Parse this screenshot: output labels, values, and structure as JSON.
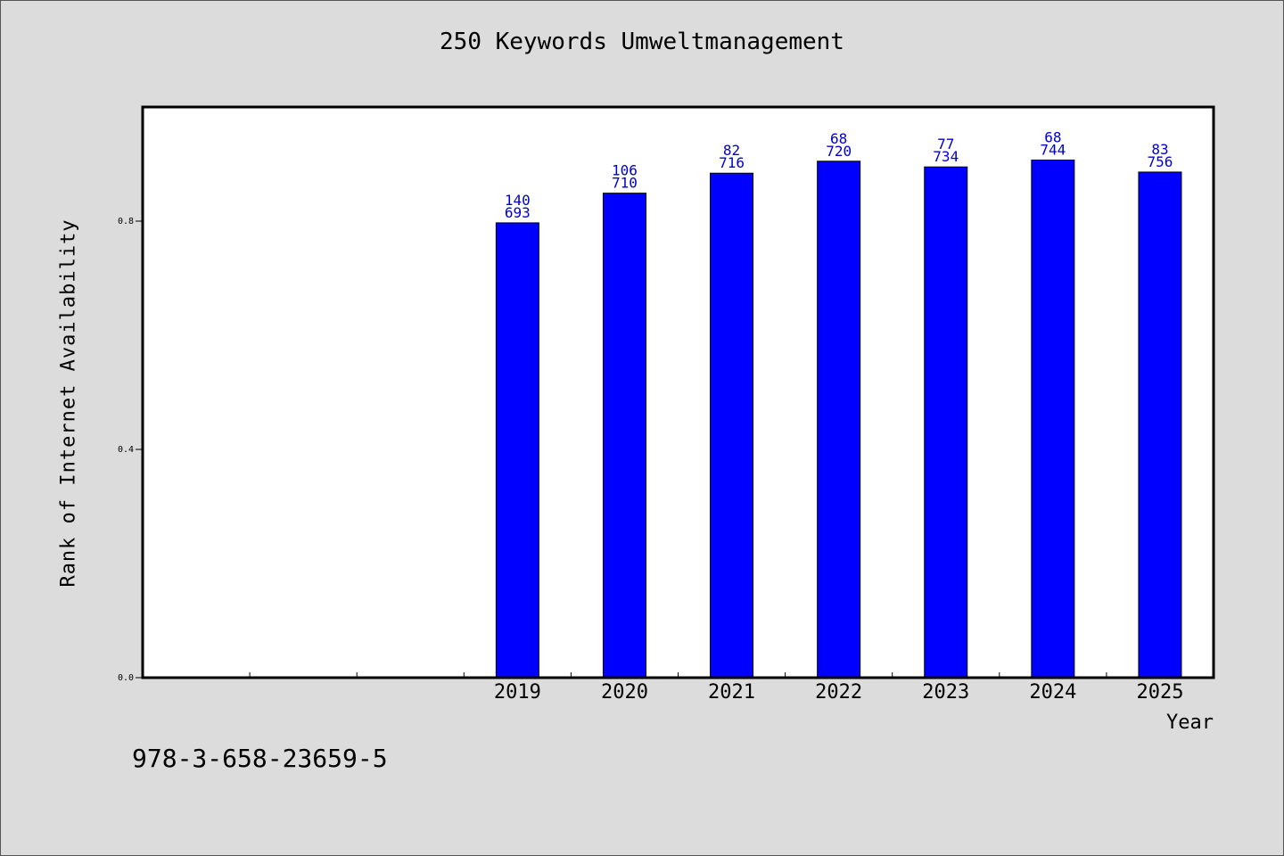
{
  "chart_data": {
    "type": "bar",
    "title": "250 Keywords Umweltmanagement",
    "xlabel": "Year",
    "ylabel": "Rank of Internet Availability",
    "footer_text": "978-3-658-23659-5",
    "categories": [
      "2019",
      "2020",
      "2021",
      "2022",
      "2023",
      "2024",
      "2025"
    ],
    "x_slots": [
      "",
      "",
      "",
      "2019",
      "2020",
      "2021",
      "2022",
      "2023",
      "2024",
      "2025"
    ],
    "values": [
      0.797,
      0.849,
      0.884,
      0.905,
      0.895,
      0.907,
      0.886
    ],
    "bar_labels": [
      {
        "top": "140",
        "bottom": "693"
      },
      {
        "top": "106",
        "bottom": "710"
      },
      {
        "top": "82",
        "bottom": "716"
      },
      {
        "top": "68",
        "bottom": "720"
      },
      {
        "top": "77",
        "bottom": "734"
      },
      {
        "top": "68",
        "bottom": "744"
      },
      {
        "top": "83",
        "bottom": "756"
      }
    ],
    "yticks": [
      0.0,
      0.4,
      0.8
    ],
    "ytick_labels": [
      "0.0",
      "0.4",
      "0.8"
    ],
    "ylim": [
      0,
      1.0
    ],
    "grid": false,
    "colors": {
      "bar": "#0000ff",
      "bar_label": "#0000cc",
      "background": "#dcdcdc",
      "plot_background": "#ffffff"
    }
  }
}
